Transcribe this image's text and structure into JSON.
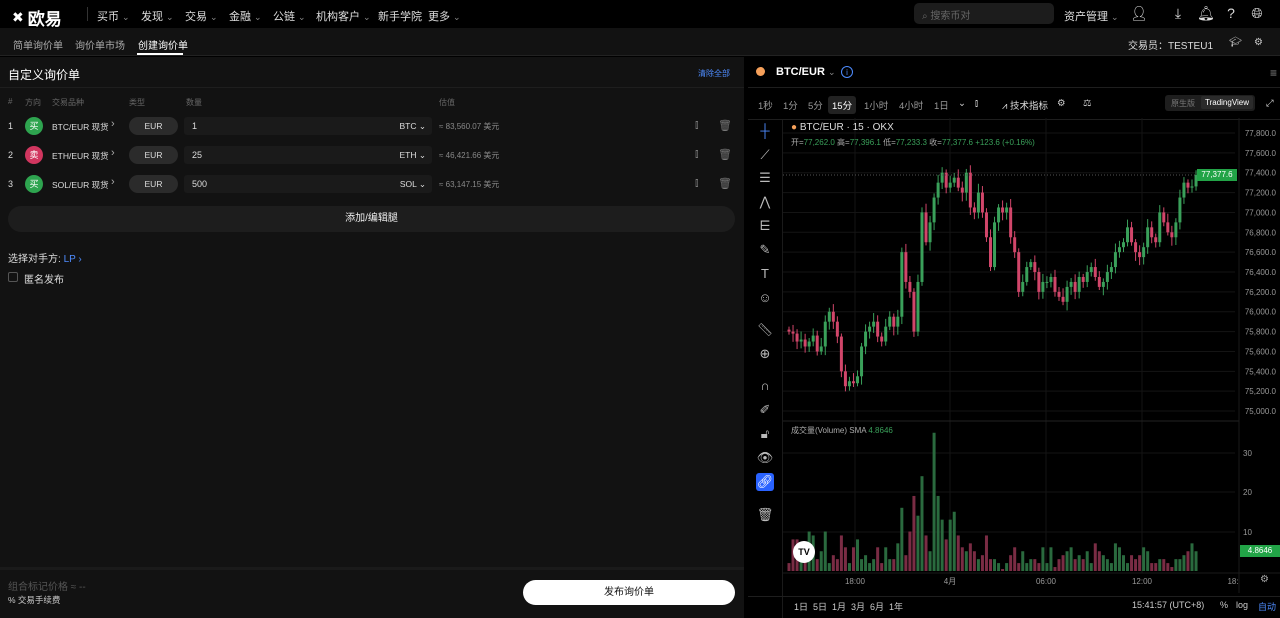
{
  "topnav": {
    "logo": "欧易",
    "items": [
      "买币",
      "发现",
      "交易",
      "金融",
      "公链",
      "机构客户",
      "新手学院",
      "更多"
    ],
    "search_placeholder": "搜索币对",
    "asset_mgmt": "资产管理",
    "icons": [
      "user-icon",
      "download-icon",
      "bell-icon",
      "help-icon",
      "globe-icon"
    ]
  },
  "subnav": {
    "tabs": [
      "简单询价单",
      "询价单市场",
      "创建询价单"
    ],
    "active": 2,
    "trader_label": "交易员：",
    "trader": "TESTEU1"
  },
  "form": {
    "title": "自定义询价单",
    "clear_all": "清除全部",
    "headers": {
      "num": "#",
      "side": "方向",
      "instrument": "交易品种",
      "type": "类型",
      "qty": "数量",
      "est": "估值"
    },
    "legs": [
      {
        "num": "1",
        "side": "买",
        "side_color": "#2ea44f",
        "instrument": "BTC/EUR 现货",
        "ccy": "EUR",
        "qty": "1",
        "unit": "BTC",
        "est": "≈ 83,560.07 美元"
      },
      {
        "num": "2",
        "side": "卖",
        "side_color": "#d1365f",
        "instrument": "ETH/EUR 现货",
        "ccy": "EUR",
        "qty": "25",
        "unit": "ETH",
        "est": "≈ 46,421.66 美元"
      },
      {
        "num": "3",
        "side": "买",
        "side_color": "#2ea44f",
        "instrument": "SOL/EUR 现货",
        "ccy": "EUR",
        "qty": "500",
        "unit": "SOL",
        "est": "≈ 63,147.15 美元"
      }
    ],
    "add_legs": "添加/编辑腿",
    "counterparty_label": "选择对手方:",
    "counterparty_value": "LP ›",
    "anonymous": "匿名发布",
    "mark_price": "组合标记价格 ≈ --",
    "fee": "% 交易手续费",
    "publish": "发布询价单"
  },
  "chart": {
    "pair": "BTC/EUR",
    "intervals": [
      "1秒",
      "1分",
      "5分",
      "15分",
      "1小时",
      "4小时",
      "1日"
    ],
    "active_interval": 3,
    "indicators": "技术指标",
    "view_native": "原生版",
    "view_tv": "TradingView",
    "legend_title": "BTC/EUR · 15 · OKX",
    "ohlc": {
      "o_label": "开=",
      "o": "77,262.0",
      "h_label": "高=",
      "h": "77,396.1",
      "l_label": "低=",
      "l": "77,233.3",
      "c_label": "收=",
      "c": "77,377.6",
      "chg": "+123.6 (+0.16%)"
    },
    "volume_label": "成交量(Volume) SMA",
    "volume_sma": "4.8646",
    "last_price": "77,377.6",
    "ranges": [
      "1日",
      "5日",
      "1月",
      "3月",
      "6月",
      "1年"
    ],
    "clock": "15:41:57 (UTC+8)",
    "pct": "%",
    "log": "log",
    "auto": "自动",
    "up_color": "#3aa05a",
    "down_color": "#d1466a"
  },
  "chart_data": {
    "type": "candlestick",
    "price_ticks": [
      "77,800.0",
      "77,600.0",
      "77,400.0",
      "77,200.0",
      "77,000.0",
      "76,800.0",
      "76,600.0",
      "76,400.0",
      "76,200.0",
      "76,000.0",
      "75,800.0",
      "75,600.0",
      "75,400.0",
      "75,200.0",
      "75,000.0"
    ],
    "ylim": [
      75000,
      77800
    ],
    "volume_ticks": [
      "30",
      "20",
      "10"
    ],
    "x_ticks": [
      "18:00",
      "4月",
      "06:00",
      "12:00",
      "18:"
    ],
    "close": [
      75800,
      75780,
      75700,
      75720,
      75650,
      75700,
      75760,
      75600,
      75650,
      75900,
      76000,
      75900,
      75750,
      75400,
      75250,
      75300,
      75280,
      75350,
      75650,
      75800,
      75850,
      75900,
      75750,
      75700,
      75850,
      75950,
      75850,
      75950,
      76600,
      76300,
      76200,
      75800,
      76300,
      77000,
      76700,
      76900,
      77150,
      77300,
      77400,
      77250,
      77300,
      77350,
      77250,
      77200,
      77400,
      77050,
      77000,
      77200,
      77000,
      76750,
      76450,
      76900,
      77050,
      77000,
      77050,
      76750,
      76600,
      76200,
      76300,
      76450,
      76500,
      76400,
      76200,
      76300,
      76300,
      76350,
      76200,
      76150,
      76100,
      76250,
      76300,
      76200,
      76350,
      76300,
      76400,
      76450,
      76350,
      76250,
      76300,
      76400,
      76450,
      76600,
      76650,
      76700,
      76850,
      76700,
      76600,
      76550,
      76650,
      76850,
      76750,
      76700,
      77000,
      76900,
      76800,
      76750,
      76900,
      77150,
      77300,
      77250,
      77262,
      77377.6
    ],
    "volume": [
      2,
      8,
      8,
      6,
      5,
      10,
      9,
      3,
      5,
      10,
      2,
      4,
      3,
      9,
      6,
      2,
      6,
      8,
      3,
      4,
      2,
      3,
      6,
      2,
      6,
      3,
      3,
      7,
      16,
      4,
      10,
      19,
      14,
      24,
      9,
      5,
      35,
      19,
      13,
      8,
      13,
      15,
      9,
      6,
      5,
      7,
      5,
      3,
      4,
      9,
      3,
      3,
      2,
      0.5,
      2,
      4,
      6,
      2,
      5,
      2,
      3,
      3,
      2,
      6,
      2,
      6,
      1,
      3,
      4,
      5,
      6,
      3,
      4,
      3,
      5,
      2,
      7,
      5,
      4,
      3,
      2,
      7,
      6,
      4,
      2,
      4,
      3,
      4,
      6,
      5,
      2,
      2,
      3,
      3,
      2,
      1,
      3,
      3,
      4,
      5,
      7,
      5
    ]
  }
}
